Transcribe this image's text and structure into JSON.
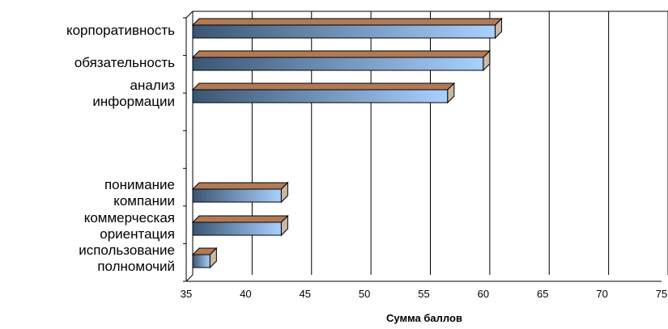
{
  "chart_data": {
    "type": "bar",
    "orientation": "horizontal",
    "style": "3d-gradient",
    "categories": [
      [
        "корпоративность"
      ],
      [
        "обязательность"
      ],
      [
        "анализ",
        "информации"
      ],
      [
        ""
      ],
      [
        "понимание",
        "компании"
      ],
      [
        "коммерческая",
        "ориентация"
      ],
      [
        "использование",
        "полномочий"
      ]
    ],
    "values": [
      61,
      60,
      57,
      null,
      43,
      43,
      37
    ],
    "xlim": [
      35,
      75
    ],
    "x_ticks": [
      "35",
      "40",
      "45",
      "50",
      "55",
      "60",
      "65",
      "70",
      "75"
    ],
    "xlabel": "Сумма баллов",
    "grid": "vertical",
    "colors": {
      "bar_dark": "#3b5673",
      "bar_light": "#a9d0ff",
      "bar_top": "#b07a55",
      "bar_side": "#c9b8a4",
      "grid": "#000000"
    }
  }
}
